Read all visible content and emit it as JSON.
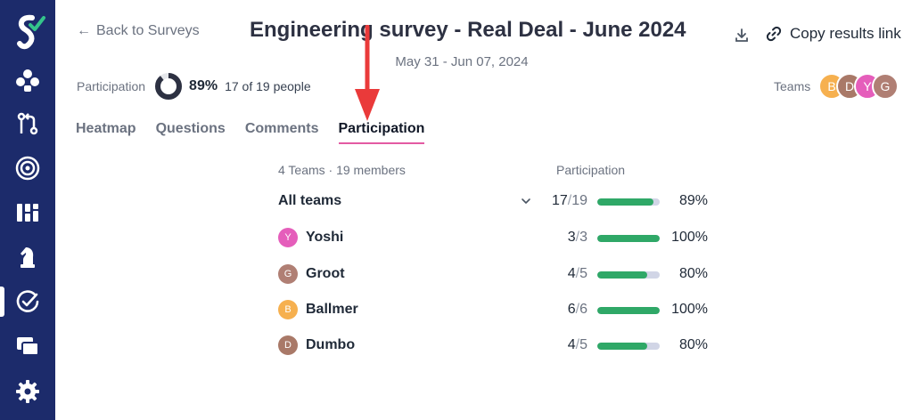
{
  "colors": {
    "sidebar_bg": "#1c2b6b",
    "accent_tab": "#e35aa3",
    "bar_fill": "#2fa867",
    "bar_track": "#d1d5e6",
    "annotation_arrow": "#ea3a3a"
  },
  "sidebar": {
    "items": [
      {
        "icon": "spaces-icon"
      },
      {
        "icon": "git-pull-request-icon"
      },
      {
        "icon": "target-icon"
      },
      {
        "icon": "dashboard-icon"
      },
      {
        "icon": "chess-knight-icon"
      },
      {
        "icon": "survey-check-icon",
        "active": true
      },
      {
        "icon": "windows-icon"
      },
      {
        "icon": "gear-icon"
      }
    ]
  },
  "header": {
    "back_label": "Back to Surveys",
    "title": "Engineering survey - Real Deal - June 2024",
    "date_range": "May 31 - Jun 07, 2024",
    "copy_link_label": "Copy results link"
  },
  "participation": {
    "label": "Participation",
    "percent": "89%",
    "fraction": 0.89,
    "count_text": "17 of 19 people"
  },
  "teams": {
    "label": "Teams",
    "avatars": [
      {
        "initial": "B",
        "color": "#f6b04f"
      },
      {
        "initial": "D",
        "color": "#a97968"
      },
      {
        "initial": "Y",
        "color": "#e55ebb"
      },
      {
        "initial": "G",
        "color": "#b07f74"
      }
    ]
  },
  "tabs": [
    {
      "label": "Heatmap",
      "active": false
    },
    {
      "label": "Questions",
      "active": false
    },
    {
      "label": "Comments",
      "active": false
    },
    {
      "label": "Participation",
      "active": true
    }
  ],
  "table": {
    "summary": "4 Teams · 19 members",
    "participation_header": "Participation",
    "all": {
      "name": "All teams",
      "num": "17",
      "den": "19",
      "fraction": 0.894,
      "pct": "89%"
    },
    "rows": [
      {
        "initial": "Y",
        "name": "Yoshi",
        "color": "#e55ebb",
        "num": "3",
        "den": "3",
        "fraction": 1.0,
        "pct": "100%"
      },
      {
        "initial": "G",
        "name": "Groot",
        "color": "#b07f74",
        "num": "4",
        "den": "5",
        "fraction": 0.8,
        "pct": "80%"
      },
      {
        "initial": "B",
        "name": "Ballmer",
        "color": "#f6b04f",
        "num": "6",
        "den": "6",
        "fraction": 1.0,
        "pct": "100%"
      },
      {
        "initial": "D",
        "name": "Dumbo",
        "color": "#a97968",
        "num": "4",
        "den": "5",
        "fraction": 0.8,
        "pct": "80%"
      }
    ]
  }
}
